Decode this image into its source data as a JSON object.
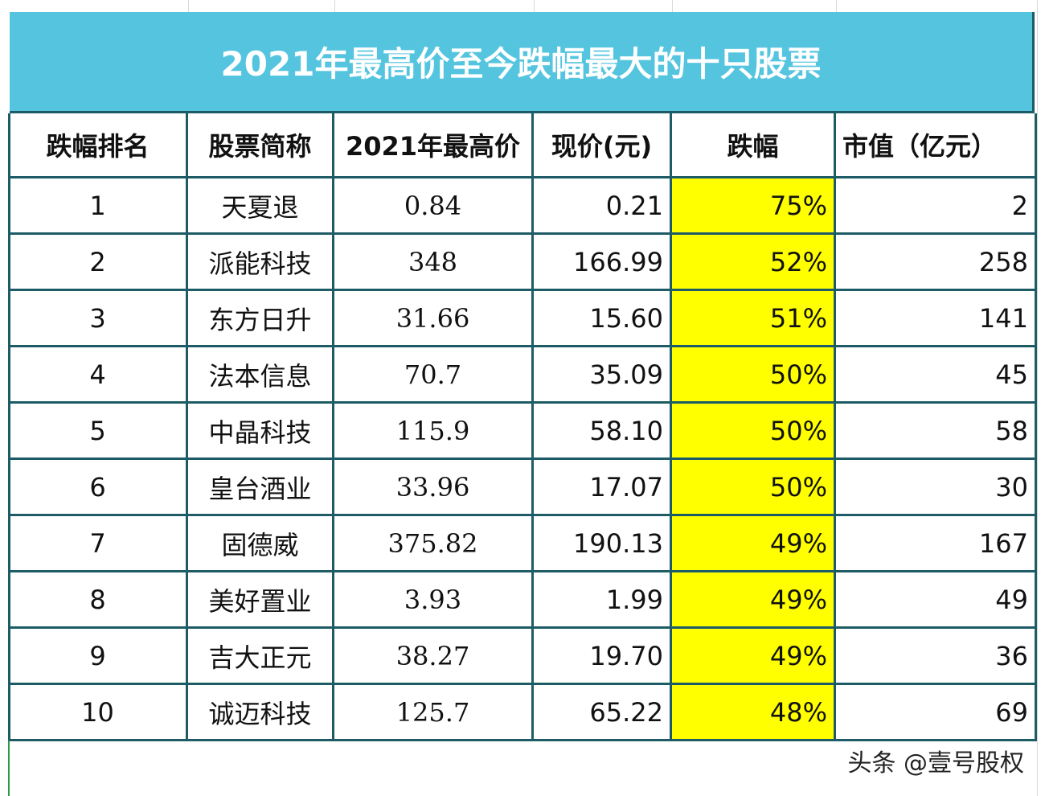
{
  "table": {
    "title": "2021年最高价至今跌幅最大的十只股票",
    "headers": [
      "跌幅排名",
      "股票简称",
      "2021年最高价",
      "现价(元)",
      "跌幅",
      "市值（亿元）"
    ],
    "rows": [
      [
        "1",
        "天夏退",
        "0.84",
        "0.21",
        "75%",
        "2"
      ],
      [
        "2",
        "派能科技",
        "348",
        "166.99",
        "52%",
        "258"
      ],
      [
        "3",
        "东方日升",
        "31.66",
        "15.60",
        "51%",
        "141"
      ],
      [
        "4",
        "法本信息",
        "70.7",
        "35.09",
        "50%",
        "45"
      ],
      [
        "5",
        "中晶科技",
        "115.9",
        "58.10",
        "50%",
        "58"
      ],
      [
        "6",
        "皇台酒业",
        "33.96",
        "17.07",
        "50%",
        "30"
      ],
      [
        "7",
        "固德威",
        "375.82",
        "190.13",
        "49%",
        "167"
      ],
      [
        "8",
        "美好置业",
        "3.93",
        "1.99",
        "49%",
        "49"
      ],
      [
        "9",
        "吉大正元",
        "38.27",
        "19.70",
        "49%",
        "36"
      ],
      [
        "10",
        "诚迈科技",
        "125.7",
        "65.22",
        "48%",
        "69"
      ]
    ]
  },
  "watermark": "头条 @壹号股权"
}
